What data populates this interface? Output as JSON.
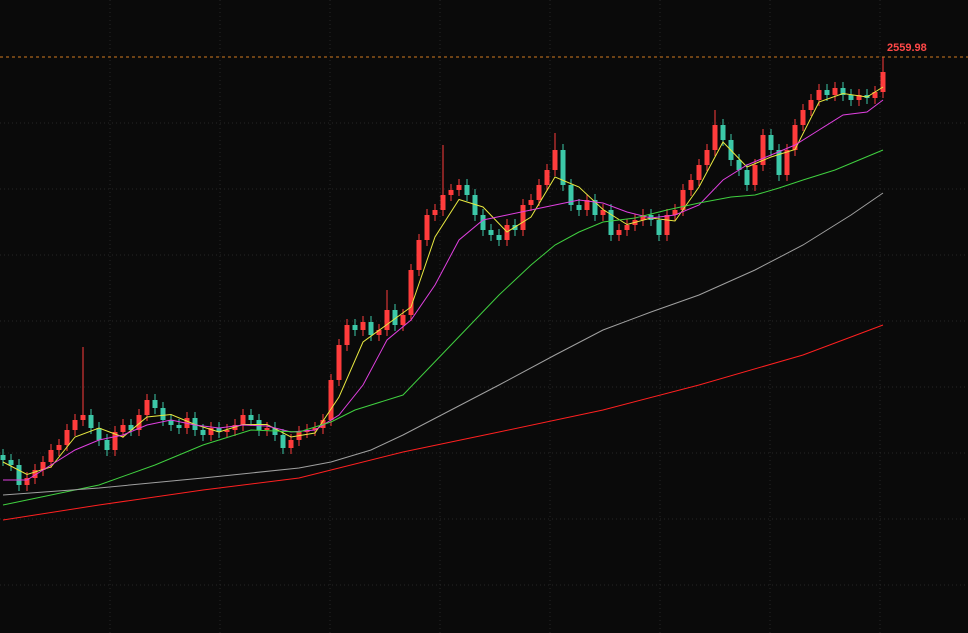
{
  "chart_data": {
    "type": "candlestick",
    "up_color": "#ff3c3c",
    "down_color": "#3cc8a8",
    "ylim": [
      1408,
      2674
    ],
    "open": [
      1764,
      1754,
      1744,
      1704,
      1718,
      1734,
      1750,
      1774,
      1784,
      1814,
      1834,
      1844,
      1818,
      1794,
      1774,
      1810,
      1824,
      1814,
      1844,
      1874,
      1858,
      1834,
      1824,
      1818,
      1838,
      1814,
      1804,
      1818,
      1810,
      1814,
      1824,
      1844,
      1834,
      1814,
      1818,
      1804,
      1778,
      1794,
      1810,
      1814,
      1818,
      1834,
      1914,
      1984,
      2024,
      2014,
      2030,
      2004,
      2014,
      2054,
      2024,
      2044,
      2134,
      2194,
      2244,
      2254,
      2284,
      2294,
      2304,
      2284,
      2244,
      2214,
      2204,
      2194,
      2224,
      2214,
      2264,
      2274,
      2304,
      2334,
      2374,
      2304,
      2264,
      2254,
      2274,
      2244,
      2254,
      2204,
      2214,
      2224,
      2234,
      2244,
      2234,
      2204,
      2244,
      2254,
      2294,
      2314,
      2344,
      2374,
      2424,
      2394,
      2354,
      2334,
      2304,
      2344,
      2404,
      2374,
      2324,
      2374,
      2424,
      2454,
      2474,
      2494,
      2484,
      2498,
      2484,
      2474,
      2484,
      2478,
      2490
    ],
    "high": [
      1776,
      1766,
      1756,
      1730,
      1746,
      1762,
      1786,
      1796,
      1826,
      1846,
      1980,
      1856,
      1830,
      1806,
      1822,
      1836,
      1836,
      1856,
      1886,
      1886,
      1870,
      1846,
      1836,
      1850,
      1850,
      1826,
      1830,
      1830,
      1826,
      1836,
      1856,
      1856,
      1846,
      1830,
      1830,
      1816,
      1806,
      1822,
      1826,
      1830,
      1846,
      1926,
      1996,
      2036,
      2036,
      2042,
      2042,
      2026,
      2094,
      2066,
      2056,
      2146,
      2206,
      2256,
      2266,
      2384,
      2306,
      2316,
      2316,
      2296,
      2256,
      2226,
      2216,
      2236,
      2236,
      2276,
      2286,
      2316,
      2346,
      2408,
      2386,
      2316,
      2276,
      2286,
      2286,
      2266,
      2266,
      2226,
      2236,
      2246,
      2256,
      2256,
      2246,
      2256,
      2266,
      2306,
      2326,
      2356,
      2386,
      2454,
      2436,
      2406,
      2366,
      2346,
      2356,
      2416,
      2416,
      2386,
      2386,
      2436,
      2466,
      2486,
      2506,
      2506,
      2510,
      2510,
      2496,
      2496,
      2496,
      2502,
      2559.98
    ],
    "low": [
      1742,
      1732,
      1692,
      1692,
      1706,
      1722,
      1738,
      1762,
      1772,
      1802,
      1822,
      1806,
      1782,
      1762,
      1762,
      1798,
      1802,
      1802,
      1832,
      1846,
      1822,
      1812,
      1806,
      1806,
      1802,
      1792,
      1792,
      1798,
      1798,
      1802,
      1812,
      1822,
      1802,
      1802,
      1792,
      1766,
      1766,
      1782,
      1798,
      1802,
      1806,
      1822,
      1902,
      1972,
      2002,
      2002,
      1992,
      1992,
      2002,
      2012,
      2012,
      2032,
      2122,
      2182,
      2232,
      2242,
      2272,
      2282,
      2272,
      2232,
      2202,
      2192,
      2182,
      2182,
      2202,
      2202,
      2252,
      2262,
      2292,
      2322,
      2292,
      2252,
      2242,
      2242,
      2232,
      2232,
      2192,
      2192,
      2202,
      2212,
      2222,
      2222,
      2192,
      2192,
      2232,
      2242,
      2282,
      2302,
      2332,
      2362,
      2382,
      2342,
      2322,
      2292,
      2292,
      2332,
      2362,
      2312,
      2312,
      2362,
      2412,
      2442,
      2462,
      2472,
      2472,
      2472,
      2462,
      2462,
      2466,
      2466,
      2478
    ],
    "close": [
      1754,
      1744,
      1704,
      1718,
      1734,
      1750,
      1774,
      1784,
      1814,
      1834,
      1844,
      1818,
      1794,
      1774,
      1810,
      1824,
      1814,
      1844,
      1874,
      1858,
      1834,
      1824,
      1818,
      1838,
      1814,
      1804,
      1818,
      1810,
      1814,
      1824,
      1844,
      1834,
      1814,
      1818,
      1804,
      1778,
      1794,
      1810,
      1814,
      1818,
      1834,
      1914,
      1984,
      2024,
      2014,
      2030,
      2004,
      2014,
      2054,
      2024,
      2044,
      2134,
      2194,
      2244,
      2254,
      2284,
      2294,
      2304,
      2284,
      2244,
      2214,
      2204,
      2194,
      2224,
      2214,
      2264,
      2274,
      2304,
      2334,
      2374,
      2304,
      2264,
      2254,
      2274,
      2244,
      2254,
      2204,
      2214,
      2224,
      2234,
      2244,
      2234,
      2204,
      2244,
      2254,
      2294,
      2314,
      2344,
      2374,
      2424,
      2394,
      2354,
      2334,
      2304,
      2344,
      2404,
      2374,
      2324,
      2374,
      2424,
      2454,
      2474,
      2494,
      2484,
      2498,
      2484,
      2474,
      2484,
      2478,
      2490,
      2530
    ],
    "series": [
      {
        "color": "#e8e840",
        "x": [
          0,
          3,
          6,
          9,
          12,
          15,
          18,
          21,
          24,
          27,
          30,
          33,
          36,
          39,
          42,
          45,
          48,
          51,
          54,
          57,
          60,
          63,
          66,
          69,
          72,
          75,
          78,
          81,
          84,
          87,
          90,
          93,
          96,
          99,
          102,
          105,
          108,
          110
        ],
        "values": [
          1750,
          1725,
          1740,
          1800,
          1818,
          1800,
          1840,
          1845,
          1825,
          1810,
          1825,
          1825,
          1800,
          1808,
          1880,
          1990,
          2025,
          2060,
          2200,
          2275,
          2260,
          2210,
          2240,
          2320,
          2300,
          2255,
          2225,
          2238,
          2232,
          2300,
          2390,
          2340,
          2360,
          2375,
          2470,
          2487,
          2480,
          2500
        ]
      },
      {
        "color": "#e040e0",
        "x": [
          0,
          3,
          6,
          9,
          12,
          15,
          18,
          21,
          24,
          27,
          30,
          33,
          36,
          39,
          42,
          45,
          48,
          51,
          54,
          57,
          60,
          63,
          66,
          69,
          72,
          75,
          78,
          81,
          84,
          87,
          90,
          93,
          96,
          99,
          102,
          105,
          108,
          110
        ],
        "values": [
          1714,
          1714,
          1744,
          1774,
          1794,
          1804,
          1824,
          1834,
          1824,
          1818,
          1824,
          1822,
          1810,
          1814,
          1844,
          1904,
          1994,
          2034,
          2104,
          2194,
          2234,
          2244,
          2254,
          2264,
          2274,
          2268,
          2250,
          2238,
          2244,
          2264,
          2314,
          2344,
          2364,
          2384,
          2414,
          2444,
          2450,
          2474
        ]
      },
      {
        "color": "#40d040",
        "x": [
          0,
          6,
          12,
          19,
          25,
          31,
          37,
          41,
          44,
          50,
          53,
          56,
          59,
          62,
          66,
          69,
          72,
          75,
          79,
          83,
          87,
          91,
          94,
          97,
          100,
          104,
          107,
          110
        ],
        "values": [
          1664,
          1684,
          1704,
          1744,
          1784,
          1814,
          1810,
          1830,
          1854,
          1884,
          1934,
          1984,
          2034,
          2084,
          2144,
          2184,
          2210,
          2230,
          2238,
          2254,
          2268,
          2280,
          2284,
          2298,
          2314,
          2334,
          2354,
          2374
        ]
      },
      {
        "color": "#a0a0a0",
        "x": [
          0,
          12,
          25,
          37,
          41,
          46,
          50,
          56,
          62,
          69,
          75,
          81,
          87,
          94,
          100,
          106,
          110
        ],
        "values": [
          1684,
          1698,
          1718,
          1738,
          1750,
          1774,
          1804,
          1854,
          1904,
          1964,
          2014,
          2050,
          2084,
          2134,
          2184,
          2244,
          2288
        ]
      },
      {
        "color": "#ff2020",
        "x": [
          0,
          12,
          25,
          37,
          41,
          50,
          62,
          75,
          87,
          100,
          110
        ],
        "values": [
          1634,
          1664,
          1694,
          1718,
          1734,
          1770,
          1810,
          1854,
          1904,
          1964,
          2024
        ]
      }
    ]
  }
}
